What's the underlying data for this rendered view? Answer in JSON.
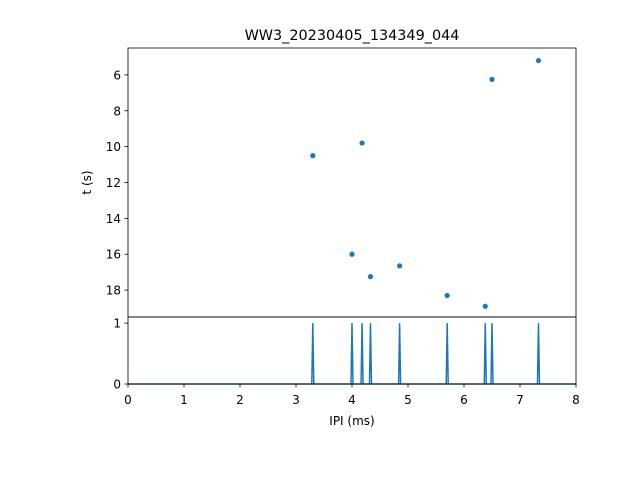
{
  "chart_data": [
    {
      "type": "scatter",
      "title": "WW3_20230405_134349_044",
      "ylabel": "t (s)",
      "xlim": [
        0,
        8
      ],
      "ylim": [
        19.5,
        4.5
      ],
      "y_inverted": true,
      "yticks": [
        6,
        8,
        10,
        12,
        14,
        16,
        18
      ],
      "x_ticks_shown": false,
      "color": "#1f77b4",
      "points": [
        {
          "x": 3.3,
          "y": 10.5
        },
        {
          "x": 4.18,
          "y": 9.8
        },
        {
          "x": 4.0,
          "y": 16.0
        },
        {
          "x": 4.33,
          "y": 17.25
        },
        {
          "x": 4.85,
          "y": 16.65
        },
        {
          "x": 5.7,
          "y": 18.3
        },
        {
          "x": 6.38,
          "y": 18.9
        },
        {
          "x": 6.5,
          "y": 6.25
        },
        {
          "x": 7.33,
          "y": 5.2
        }
      ]
    },
    {
      "type": "line",
      "xlabel": "IPI (ms)",
      "xlim": [
        0,
        8
      ],
      "ylim": [
        0,
        1.1
      ],
      "xticks": [
        0,
        1,
        2,
        3,
        4,
        5,
        6,
        7,
        8
      ],
      "yticks": [
        0,
        1
      ],
      "color": "#1f77b4",
      "spikes_x": [
        3.3,
        4.0,
        4.18,
        4.33,
        4.85,
        5.7,
        6.38,
        6.5,
        7.33
      ],
      "spike_height": 1
    }
  ]
}
